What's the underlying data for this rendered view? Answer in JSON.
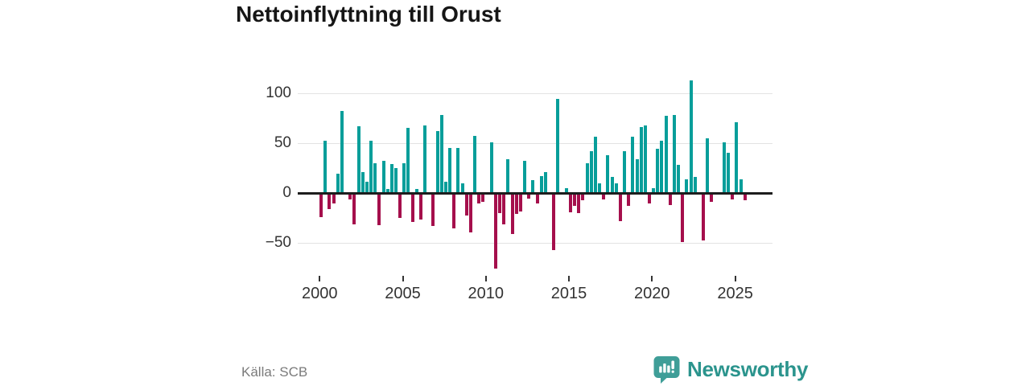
{
  "title": "Nettoinflyttning till Orust",
  "source": "Källa: SCB",
  "branding": {
    "name": "Newsworthy"
  },
  "colors": {
    "positive_bar": "#079e9a",
    "negative_bar": "#a50f4c",
    "zero_line": "#1d1d1d",
    "gridline": "#e3e3e3",
    "axis_text": "#333333",
    "title_text": "#161616",
    "source_text": "#7b7b7b",
    "brand_teal": "#2b948d",
    "brand_icon_teal": "#3f9e98"
  },
  "chart_data": {
    "type": "bar",
    "title": "Nettoinflyttning till Orust",
    "frequency": "quarterly",
    "start_period": "2000Q1",
    "end_period": "2025Q3",
    "values": [
      -23,
      52,
      -15,
      -9,
      19,
      82,
      0,
      -5,
      -30,
      67,
      21,
      11,
      52,
      30,
      -31,
      32,
      4,
      29,
      25,
      -24,
      30,
      65,
      -28,
      4,
      -25,
      68,
      0,
      -32,
      62,
      78,
      11,
      45,
      -34,
      45,
      10,
      -21,
      -38,
      57,
      -9,
      -8,
      0,
      51,
      -74,
      -19,
      -30,
      34,
      -40,
      -20,
      -17,
      32,
      -4,
      13,
      -9,
      17,
      21,
      0,
      -56,
      94,
      0,
      5,
      -18,
      -12,
      -19,
      -6,
      30,
      42,
      56,
      10,
      -5,
      38,
      16,
      10,
      -27,
      42,
      -12,
      56,
      34,
      66,
      68,
      -9,
      5,
      44,
      52,
      77,
      -11,
      78,
      28,
      -48,
      14,
      113,
      16,
      0,
      -46,
      55,
      -8,
      0,
      0,
      51,
      40,
      -5,
      71,
      14,
      -6
    ],
    "x_tick_years": [
      "2000",
      "2005",
      "2010",
      "2015",
      "2020",
      "2025"
    ],
    "y_ticks": [
      {
        "label": "100",
        "value": 100
      },
      {
        "label": "50",
        "value": 50
      },
      {
        "label": "0",
        "value": 0
      },
      {
        "label": "−50",
        "value": -50
      }
    ],
    "ylim": [
      -80,
      118
    ],
    "grid": true,
    "legend": "none",
    "xlabel": "",
    "ylabel": ""
  }
}
